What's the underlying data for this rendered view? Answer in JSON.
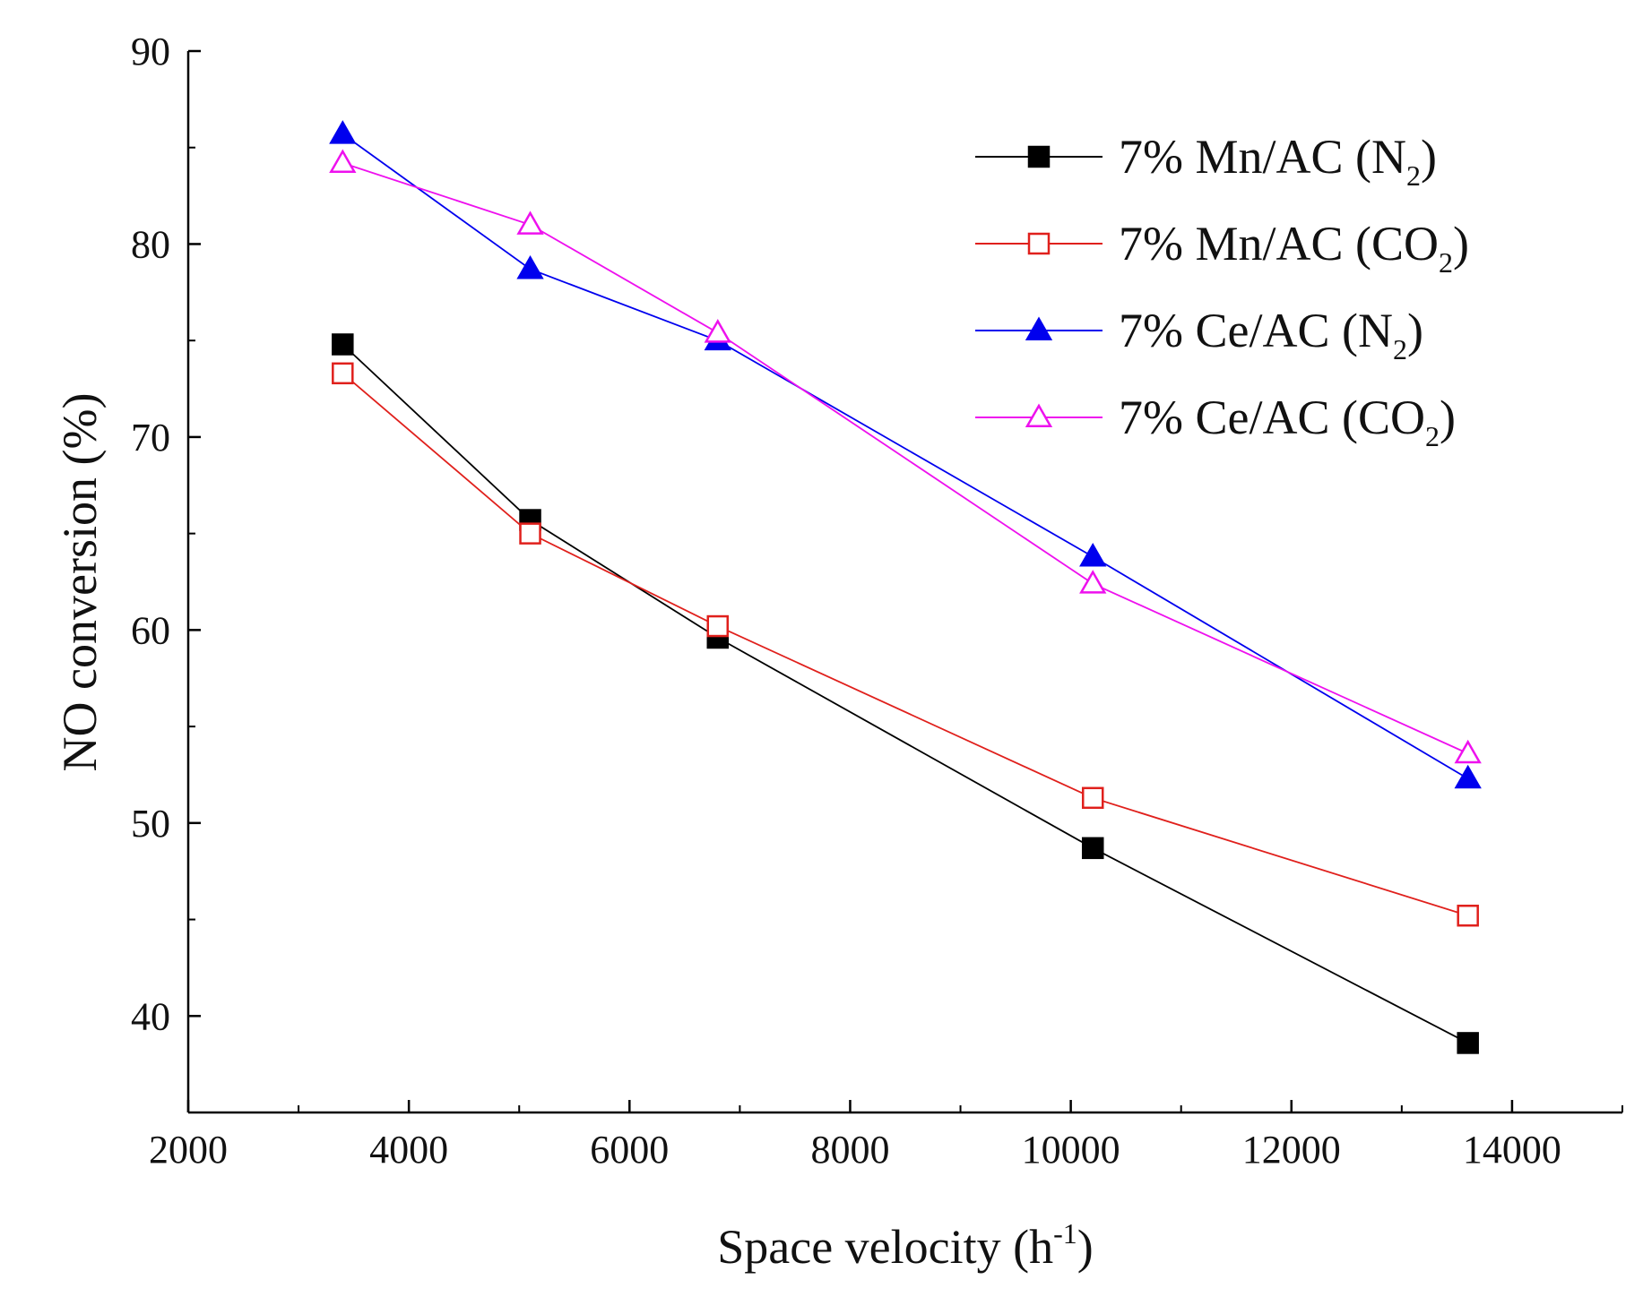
{
  "chart_data": {
    "type": "line",
    "title": "",
    "xlabel": "Space velocity (h",
    "xlabel_sup": "-1",
    "xlabel_end": ")",
    "ylabel": "NO conversion (%)",
    "xlim": [
      2000,
      15000
    ],
    "ylim": [
      35,
      90
    ],
    "x_ticks": [
      2000,
      4000,
      6000,
      8000,
      10000,
      12000,
      14000
    ],
    "x_ticks_minor": [
      3000,
      5000,
      7000,
      9000,
      11000,
      13000,
      15000
    ],
    "y_ticks": [
      40,
      50,
      60,
      70,
      80,
      90
    ],
    "y_ticks_minor": [
      45,
      55,
      65,
      75,
      85
    ],
    "x": [
      3400,
      5100,
      6800,
      10200,
      13600
    ],
    "legend_position": "top-right",
    "series": [
      {
        "name": "7% Mn/AC (N2)",
        "label_main": "7% Mn/AC (N",
        "label_sub": "2",
        "label_end": ")",
        "marker": "square-filled",
        "color": "#000000",
        "values": [
          74.8,
          65.7,
          59.6,
          48.7,
          38.6
        ]
      },
      {
        "name": "7% Mn/AC (CO2)",
        "label_main": "7% Mn/AC (CO",
        "label_sub": "2",
        "label_end": ")",
        "marker": "square-open",
        "color": "#e0201c",
        "values": [
          73.3,
          65.0,
          60.2,
          51.3,
          45.2
        ]
      },
      {
        "name": "7% Ce/AC (N2)",
        "label_main": "7% Ce/AC (N",
        "label_sub": "2",
        "label_end": ")",
        "marker": "triangle-filled",
        "color": "#0000ee",
        "values": [
          85.7,
          78.7,
          75.0,
          63.8,
          52.3
        ]
      },
      {
        "name": "7% Ce/AC (CO2)",
        "label_main": "7% Ce/AC (CO",
        "label_sub": "2",
        "label_end": ")",
        "marker": "triangle-open",
        "color": "#ee11ee",
        "values": [
          84.2,
          81.0,
          75.4,
          62.4,
          53.6
        ]
      }
    ]
  }
}
